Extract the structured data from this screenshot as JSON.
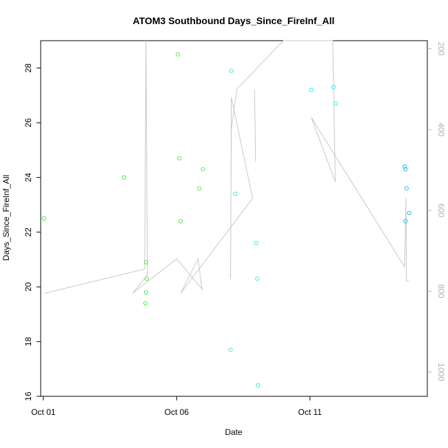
{
  "chart_data": {
    "type": "scatter",
    "title": "ATOM3 Southbound Days_Since_FireInf_All",
    "xlabel": "Date",
    "ylabel": "Days_Since_FireInf_All",
    "x_unit": "date (October)",
    "xlim_days": [
      0.9,
      15.4
    ],
    "ylim": [
      16,
      29
    ],
    "x_ticks": [
      {
        "day": 1,
        "label": "Oct 01"
      },
      {
        "day": 6,
        "label": "Oct 06"
      },
      {
        "day": 11,
        "label": "Oct 11"
      }
    ],
    "y_ticks": [
      16,
      18,
      20,
      22,
      24,
      26,
      28
    ],
    "y2_ticks": [
      200,
      400,
      600,
      800,
      1000
    ],
    "y2lim": [
      1060,
      180
    ],
    "y2_color": "#b0b0b0",
    "grid": false,
    "legend": "none",
    "points": [
      {
        "day": 1.02,
        "y": 22.5,
        "color": "#2cf02c"
      },
      {
        "day": 4.02,
        "y": 24.0,
        "color": "#3ef03a"
      },
      {
        "day": 4.85,
        "y": 20.9,
        "color": "#48f040"
      },
      {
        "day": 4.88,
        "y": 20.3,
        "color": "#48f040"
      },
      {
        "day": 4.85,
        "y": 19.8,
        "color": "#48f040"
      },
      {
        "day": 4.83,
        "y": 19.4,
        "color": "#48f040"
      },
      {
        "day": 6.05,
        "y": 28.5,
        "color": "#52f048"
      },
      {
        "day": 6.1,
        "y": 24.7,
        "color": "#52f048"
      },
      {
        "day": 6.15,
        "y": 22.4,
        "color": "#52f048"
      },
      {
        "day": 6.85,
        "y": 23.6,
        "color": "#52f06a"
      },
      {
        "day": 6.98,
        "y": 24.3,
        "color": "#52f06a"
      },
      {
        "day": 8.05,
        "y": 27.9,
        "color": "#46f0a8"
      },
      {
        "day": 8.02,
        "y": 17.7,
        "color": "#46f0a8"
      },
      {
        "day": 8.2,
        "y": 23.4,
        "color": "#46f0b0"
      },
      {
        "day": 8.98,
        "y": 21.6,
        "color": "#40f0c8"
      },
      {
        "day": 9.02,
        "y": 20.3,
        "color": "#40f0c8"
      },
      {
        "day": 9.05,
        "y": 16.4,
        "color": "#40f0c8"
      },
      {
        "day": 11.05,
        "y": 27.2,
        "color": "#2ef0f0"
      },
      {
        "day": 11.88,
        "y": 27.3,
        "color": "#2aecf0"
      },
      {
        "day": 11.97,
        "y": 26.7,
        "color": "#2aecf0"
      },
      {
        "day": 14.55,
        "y": 24.4,
        "color": "#2ab8f0"
      },
      {
        "day": 14.58,
        "y": 24.3,
        "color": "#2ab8f0"
      },
      {
        "day": 14.62,
        "y": 23.6,
        "color": "#2ab8f0"
      },
      {
        "day": 14.58,
        "y": 22.4,
        "color": "#2ab8f0"
      },
      {
        "day": 14.72,
        "y": 22.7,
        "color": "#2ab8f0"
      }
    ],
    "line_series": {
      "color": "#c8c8c8",
      "axis": "right",
      "points": [
        {
          "day": 1.05,
          "y2": 805
        },
        {
          "day": 4.8,
          "y2": 745
        },
        {
          "day": 4.85,
          "y2": 180
        },
        {
          "day": 4.9,
          "y2": 760
        },
        {
          "day": 4.35,
          "y2": 805
        },
        {
          "day": 6.0,
          "y2": 720
        },
        {
          "day": 6.95,
          "y2": 795
        },
        {
          "day": 6.8,
          "y2": 720
        },
        {
          "day": 6.15,
          "y2": 805
        },
        {
          "day": 8.85,
          "y2": 570
        },
        {
          "day": 8.05,
          "y2": 320
        },
        {
          "day": 8.02,
          "y2": 770
        },
        {
          "day": 8.05,
          "y2": 400
        },
        {
          "day": 8.25,
          "y2": 300
        },
        {
          "day": 10.0,
          "y2": 180
        },
        {
          "day": 11.85,
          "y2": 180
        },
        {
          "day": 11.95,
          "y2": 530
        },
        {
          "day": 11.05,
          "y2": 370
        },
        {
          "day": 14.55,
          "y2": 740
        },
        {
          "day": 14.6,
          "y2": 570
        },
        {
          "day": 14.62,
          "y2": 775
        },
        {
          "day": 14.72,
          "y2": 775
        }
      ],
      "extra_segment": [
        {
          "day": 8.92,
          "y2": 300
        },
        {
          "day": 8.96,
          "y2": 480
        }
      ]
    }
  }
}
